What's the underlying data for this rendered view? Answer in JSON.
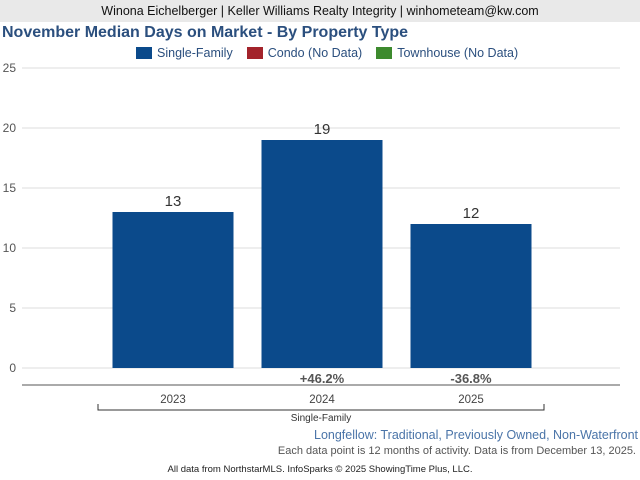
{
  "header": {
    "agent_line": "Winona Eichelberger | Keller Williams Realty Integrity | winhometeam@kw.com"
  },
  "footer": {
    "subtitle": "Longfellow: Traditional, Previously Owned, Non-Waterfront",
    "note": "Each data point is 12 months of activity. Data is from December 13, 2025.",
    "credits": "All data from NorthstarMLS. InfoSparks © 2025 ShowingTime Plus, LLC."
  },
  "chart_data": {
    "type": "bar",
    "title": "November Median Days on Market - By Property Type",
    "legend": [
      {
        "label": "Single-Family",
        "color": "#0b4a8b"
      },
      {
        "label": "Condo (No Data)",
        "color": "#a3232b"
      },
      {
        "label": "Townhouse (No Data)",
        "color": "#3d8a2e"
      }
    ],
    "categories": [
      "2023",
      "2024",
      "2025"
    ],
    "series": [
      {
        "name": "Single-Family",
        "values": [
          13,
          19,
          12
        ],
        "color": "#0b4a8b"
      }
    ],
    "value_labels": [
      "13",
      "19",
      "12"
    ],
    "changes": [
      "",
      "+46.2%",
      "-36.8%"
    ],
    "group_label": "Single-Family",
    "ylim": [
      0,
      25
    ],
    "yticks": [
      "0",
      "5",
      "10",
      "15",
      "20",
      "25"
    ],
    "xlabel": "",
    "ylabel": ""
  }
}
